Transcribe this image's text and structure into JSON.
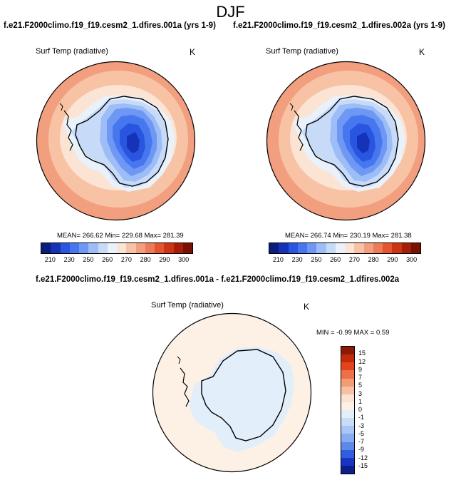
{
  "title": "DJF",
  "panels": [
    {
      "case_title": "f.e21.F2000climo.f19_f19.cesm2_1.dfires.001a (yrs 1-9)",
      "variable": "Surf Temp (radiative)",
      "units": "K",
      "stats": "MEAN= 266.62  Min= 229.68  Max= 281.39"
    },
    {
      "case_title": "f.e21.F2000climo.f19_f19.cesm2_1.dfires.002a (yrs 1-9)",
      "variable": "Surf Temp (radiative)",
      "units": "K",
      "stats": "MEAN= 266.74  Min= 230.19  Max= 281.38"
    }
  ],
  "diff": {
    "case_title": "f.e21.F2000climo.f19_f19.cesm2_1.dfires.001a - f.e21.F2000climo.f19_f19.cesm2_1.dfires.002a",
    "variable": "Surf Temp (radiative)",
    "units": "K",
    "stats": "MIN =  -0.99 MAX =   0.59"
  },
  "colorbar_abs": {
    "labels": [
      "210",
      "230",
      "250",
      "260",
      "270",
      "280",
      "290",
      "300"
    ],
    "colors": [
      "#0a1d7a",
      "#1433b8",
      "#2a55e0",
      "#4677ee",
      "#6f98f5",
      "#9dbdf7",
      "#c7daf8",
      "#e9f1fa",
      "#fbe4d4",
      "#f8c2a5",
      "#f29f7f",
      "#ec7b57",
      "#e4542f",
      "#cd3414",
      "#a51e08",
      "#7a0f03"
    ]
  },
  "colorbar_diff": {
    "labels": [
      "15",
      "12",
      "9",
      "7",
      "5",
      "3",
      "1",
      "0",
      "-1",
      "-3",
      "-5",
      "-7",
      "-9",
      "-12",
      "-15"
    ],
    "colors": [
      "#8a1a06",
      "#c22a0c",
      "#e4441d",
      "#ef7046",
      "#f39b76",
      "#f7c0a2",
      "#fbe2d2",
      "#fdf1e6",
      "#e3eefb",
      "#c8dcf7",
      "#a9c6f4",
      "#86abf0",
      "#5c88ea",
      "#2f5ee0",
      "#1835c4",
      "#0d1e8a"
    ]
  }
}
